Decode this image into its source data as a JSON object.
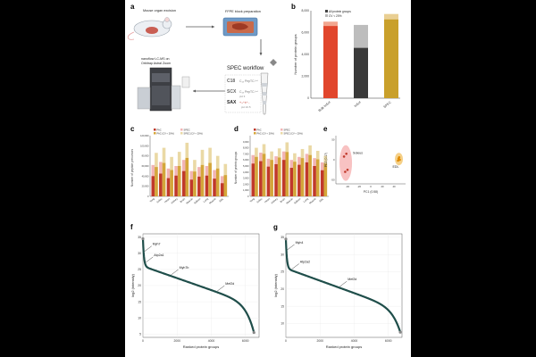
{
  "panels": {
    "a": {
      "label": "a",
      "excision": "Mouse organ excision",
      "ffpe": "FFPE block preparation",
      "ms_line1": "nanoflow LC-MS on",
      "ms_line2": "Orbitrap Astral Zoom",
      "workflow_title": "SPEC workflow",
      "steps": [
        {
          "name": "C18",
          "text": "C₁₈ PepTC‑ᵏᶜᵗ"
        },
        {
          "name": "SCX",
          "text": "C₁₈ PepTC‑ᵏᶜᵗ"
        },
        {
          "name": "SAX",
          "text": "+₊⁺±⁺₋"
        }
      ],
      "ph1": "pH 3",
      "ph2": "pH 10.5"
    },
    "b": {
      "label": "b",
      "legend": [
        "All protein groups",
        "CV < 20%"
      ],
      "ylabel": "Number of protein groups",
      "yticks": [
        "0",
        "2,000",
        "4,000",
        "6,000",
        "8,000"
      ]
    },
    "c": {
      "label": "c",
      "ylabel": "Number of peptide precursors",
      "legend": [
        "PAC",
        "SPEC",
        "PAC (CV < 20%)",
        "SPEC (CV < 20%)"
      ]
    },
    "d": {
      "label": "d",
      "ylabel": "Number of protein groups",
      "legend": [
        "PAC",
        "SPEC",
        "PAC (CV < 20%)",
        "SPEC (CV < 20%)"
      ]
    },
    "e": {
      "label": "e",
      "xlabel": "PC1 (0.58)",
      "ylabel": "PC2 (0.17)",
      "groups": [
        "Soleus",
        "EDL"
      ]
    },
    "f": {
      "label": "f",
      "xlabel": "Ranked protein groups",
      "ylabel": "log2 (intensity)",
      "annotations": [
        "Myh7",
        "Atp2a1",
        "Myh7b",
        "Mef2d"
      ]
    },
    "g": {
      "label": "g",
      "xlabel": "Ranked protein groups",
      "ylabel": "log2 (intensity)",
      "annotations": [
        "Myh4",
        "Atp2a2",
        "Mef2d"
      ]
    }
  },
  "chart_data": [
    {
      "panel": "b",
      "type": "bar",
      "categories": [
        "Bulk InSol",
        "InSol",
        "SPEC"
      ],
      "ylabel": "Number of protein groups",
      "ylim": [
        0,
        8000
      ],
      "series": [
        {
          "name": "All protein groups",
          "values": [
            7000,
            6700,
            7700
          ]
        },
        {
          "name": "CV < 20%",
          "values": [
            6600,
            4600,
            7200
          ]
        }
      ],
      "colors": {
        "light": [
          "#f2a68f",
          "#bdbdbd",
          "#e9cf93"
        ],
        "dark": [
          "#e1462c",
          "#3a3a3a",
          "#c9a02b"
        ]
      }
    },
    {
      "panel": "c",
      "type": "bar",
      "categories": [
        "Tong",
        "Soleu",
        "Heart",
        "Kidney",
        "Brain",
        "Muscle",
        "Spleen",
        "Lung",
        "Muscle",
        "EDL"
      ],
      "ylabel": "Number of peptide precursors",
      "ylim": [
        0,
        120000
      ],
      "yticks": [
        0,
        20000,
        40000,
        60000,
        80000,
        100000,
        120000
      ],
      "series": [
        {
          "name": "PAC",
          "values": [
            62000,
            68000,
            55000,
            60000,
            72000,
            50000,
            58000,
            60000,
            52000,
            40000
          ]
        },
        {
          "name": "PAC (CV < 20%)",
          "values": [
            40000,
            45000,
            36000,
            41000,
            50000,
            33000,
            39000,
            41000,
            35000,
            26000
          ]
        },
        {
          "name": "SPEC",
          "values": [
            86000,
            96000,
            78000,
            88000,
            106000,
            72000,
            92000,
            96000,
            80000,
            64000
          ]
        },
        {
          "name": "SPEC (CV < 20%)",
          "values": [
            58000,
            66000,
            52000,
            60000,
            76000,
            49000,
            62000,
            66000,
            55000,
            42000
          ]
        }
      ]
    },
    {
      "panel": "d",
      "type": "bar",
      "categories": [
        "Tong",
        "Soleu",
        "Heart",
        "Kidney",
        "Brain",
        "Muscle",
        "Spleen",
        "Lung",
        "Muscle",
        "EDL"
      ],
      "ylabel": "Number of protein groups",
      "ylim": [
        0,
        10000
      ],
      "yticks": [
        0,
        1000,
        2000,
        3000,
        4000,
        5000,
        6000,
        7000,
        8000,
        9000
      ],
      "series": [
        {
          "name": "PAC",
          "values": [
            6800,
            7200,
            6200,
            6600,
            7400,
            6000,
            6500,
            7000,
            6300,
            5600
          ]
        },
        {
          "name": "PAC (CV < 20%)",
          "values": [
            5400,
            5800,
            4900,
            5300,
            6000,
            4700,
            5200,
            5600,
            5000,
            4300
          ]
        },
        {
          "name": "SPEC",
          "values": [
            8000,
            8600,
            7400,
            7900,
            8900,
            7100,
            7800,
            8400,
            7500,
            6700
          ]
        },
        {
          "name": "SPEC (CV < 20%)",
          "values": [
            6500,
            7000,
            6000,
            6400,
            7300,
            5700,
            6300,
            6800,
            6100,
            5400
          ]
        }
      ]
    },
    {
      "panel": "e",
      "type": "scatter",
      "xlabel": "PC1 (0.58)",
      "ylabel": "PC2 (0.17)",
      "xlim": [
        -60,
        60
      ],
      "ylim": [
        -60,
        60
      ],
      "series": [
        {
          "name": "Soleus",
          "x": [
            -42,
            -40,
            -44,
            -46
          ],
          "y": [
            15,
            -25,
            -30,
            8
          ]
        },
        {
          "name": "EDL",
          "x": [
            48,
            50,
            49,
            47
          ],
          "y": [
            3,
            0,
            6,
            -2
          ]
        }
      ]
    },
    {
      "panel": "f",
      "type": "scatter",
      "xlabel": "Ranked protein groups",
      "ylabel": "log2 (intensity)",
      "xlim": [
        0,
        6800
      ],
      "ylim": [
        4,
        36
      ],
      "xticks": [
        0,
        2000,
        4000,
        6000
      ],
      "yticks": [
        5,
        10,
        15,
        20,
        25,
        30,
        35
      ],
      "rank_curve": {
        "n": 6500,
        "top": 34.5,
        "plateau": 20,
        "bottom": 5.5
      },
      "annotations": [
        {
          "label": "Myh7",
          "x": 40,
          "y": 30.5
        },
        {
          "label": "Atp2a1",
          "x": 120,
          "y": 28
        },
        {
          "label": "Myh7b",
          "x": 1600,
          "y": 24.5
        },
        {
          "label": "Mef2d",
          "x": 4300,
          "y": 18
        }
      ]
    },
    {
      "panel": "g",
      "type": "scatter",
      "xlabel": "Ranked protein groups",
      "ylabel": "log2 (intensity)",
      "xlim": [
        0,
        6800
      ],
      "ylim": [
        6,
        36
      ],
      "xticks": [
        0,
        2000,
        4000,
        6000
      ],
      "yticks": [
        10,
        15,
        20,
        25,
        30,
        35
      ],
      "rank_curve": {
        "n": 6700,
        "top": 34.5,
        "plateau": 20,
        "bottom": 7.5
      },
      "annotations": [
        {
          "label": "Myh4",
          "x": 30,
          "y": 33
        },
        {
          "label": "Atp2a2",
          "x": 300,
          "y": 26
        },
        {
          "label": "Mef2d",
          "x": 3100,
          "y": 19
        }
      ]
    }
  ]
}
